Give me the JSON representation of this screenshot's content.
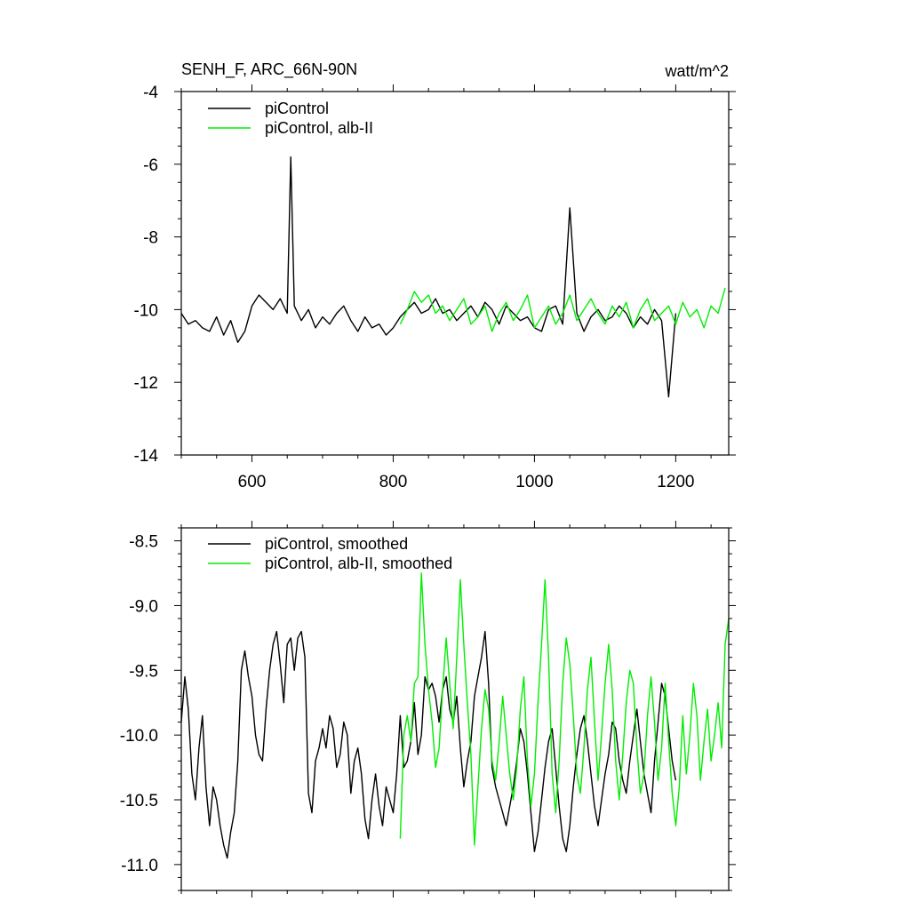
{
  "chart_data": [
    {
      "type": "line",
      "title": "SENH_F, ARC_66N-90N",
      "units": "watt/m^2",
      "xlim": [
        500,
        1275
      ],
      "ylim": [
        -14,
        -4
      ],
      "xticks": [
        600,
        800,
        1000,
        1200
      ],
      "yticks": [
        -4,
        -6,
        -8,
        -10,
        -12,
        -14
      ],
      "xtick_labels": [
        "600",
        "800",
        "1000",
        "1200"
      ],
      "ytick_labels": [
        "-4",
        "-6",
        "-8",
        "-10",
        "-12",
        "-14"
      ],
      "legend_position": "top-left",
      "colors": {
        "piControl": "#000000",
        "alb": "#00ee00"
      },
      "series": [
        {
          "name": "piControl",
          "color": "#000000",
          "x": [
            500,
            510,
            520,
            530,
            540,
            550,
            560,
            570,
            580,
            590,
            600,
            610,
            620,
            630,
            640,
            650,
            655,
            660,
            670,
            680,
            690,
            700,
            710,
            720,
            730,
            740,
            750,
            760,
            770,
            780,
            790,
            800,
            810,
            820,
            830,
            840,
            850,
            860,
            870,
            880,
            890,
            900,
            910,
            920,
            930,
            940,
            950,
            960,
            970,
            980,
            990,
            1000,
            1010,
            1020,
            1030,
            1040,
            1050,
            1060,
            1070,
            1080,
            1090,
            1100,
            1110,
            1120,
            1130,
            1140,
            1150,
            1160,
            1170,
            1180,
            1190,
            1200
          ],
          "y": [
            -10.1,
            -10.4,
            -10.3,
            -10.5,
            -10.6,
            -10.2,
            -10.7,
            -10.3,
            -10.9,
            -10.6,
            -9.9,
            -9.6,
            -9.8,
            -10.0,
            -9.7,
            -10.1,
            -5.8,
            -9.9,
            -10.3,
            -10.0,
            -10.5,
            -10.2,
            -10.4,
            -10.1,
            -9.9,
            -10.3,
            -10.6,
            -10.2,
            -10.5,
            -10.4,
            -10.7,
            -10.5,
            -10.2,
            -10.0,
            -9.8,
            -10.1,
            -10.0,
            -9.7,
            -10.1,
            -10.0,
            -10.3,
            -10.1,
            -9.9,
            -10.2,
            -9.8,
            -10.0,
            -10.4,
            -9.9,
            -10.1,
            -10.3,
            -10.2,
            -10.5,
            -10.6,
            -10.0,
            -9.9,
            -10.4,
            -7.2,
            -10.1,
            -10.6,
            -10.2,
            -10.0,
            -10.3,
            -10.2,
            -9.9,
            -10.1,
            -10.5,
            -10.2,
            -10.4,
            -10.0,
            -10.3,
            -12.4,
            -10.1
          ]
        },
        {
          "name": "piControl, alb-II",
          "color": "#00ee00",
          "x": [
            810,
            820,
            830,
            840,
            850,
            860,
            870,
            880,
            890,
            900,
            910,
            920,
            930,
            940,
            950,
            960,
            970,
            980,
            990,
            1000,
            1010,
            1020,
            1030,
            1040,
            1050,
            1060,
            1070,
            1080,
            1090,
            1100,
            1110,
            1120,
            1130,
            1140,
            1150,
            1160,
            1170,
            1180,
            1190,
            1200,
            1210,
            1220,
            1230,
            1240,
            1250,
            1260,
            1270
          ],
          "y": [
            -10.4,
            -10.0,
            -9.5,
            -9.8,
            -9.6,
            -10.1,
            -9.9,
            -10.3,
            -10.0,
            -9.7,
            -10.4,
            -10.2,
            -9.9,
            -10.6,
            -10.1,
            -9.8,
            -10.3,
            -10.0,
            -9.6,
            -10.5,
            -10.2,
            -9.9,
            -10.4,
            -10.1,
            -9.6,
            -10.3,
            -10.0,
            -9.7,
            -10.1,
            -10.4,
            -9.9,
            -10.2,
            -9.8,
            -10.5,
            -10.0,
            -9.7,
            -10.3,
            -10.1,
            -9.9,
            -10.4,
            -9.8,
            -10.2,
            -10.0,
            -10.5,
            -9.9,
            -10.1,
            -9.4
          ]
        }
      ]
    },
    {
      "type": "line",
      "xlim": [
        500,
        1275
      ],
      "ylim": [
        -11.2,
        -8.4
      ],
      "xticks": [
        600,
        800,
        1000,
        1200
      ],
      "yticks": [
        -8.5,
        -9.0,
        -9.5,
        -10.0,
        -10.5,
        -11.0
      ],
      "ytick_labels": [
        "-8.5",
        "-9.0",
        "-9.5",
        "-10.0",
        "-10.5",
        "-11.0"
      ],
      "legend_position": "top-left",
      "series": [
        {
          "name": "piControl, smoothed",
          "color": "#000000",
          "x": [
            500,
            505,
            510,
            515,
            520,
            525,
            530,
            535,
            540,
            545,
            550,
            555,
            560,
            565,
            570,
            575,
            580,
            585,
            590,
            595,
            600,
            605,
            610,
            615,
            620,
            625,
            630,
            635,
            640,
            645,
            650,
            655,
            660,
            665,
            670,
            675,
            680,
            685,
            690,
            695,
            700,
            705,
            710,
            715,
            720,
            725,
            730,
            735,
            740,
            745,
            750,
            755,
            760,
            765,
            770,
            775,
            780,
            785,
            790,
            795,
            800,
            805,
            810,
            815,
            820,
            825,
            830,
            835,
            840,
            845,
            850,
            855,
            860,
            865,
            870,
            875,
            880,
            885,
            890,
            895,
            900,
            905,
            910,
            915,
            920,
            925,
            930,
            935,
            940,
            945,
            950,
            955,
            960,
            965,
            970,
            975,
            980,
            985,
            990,
            995,
            1000,
            1005,
            1010,
            1015,
            1020,
            1025,
            1030,
            1035,
            1040,
            1045,
            1050,
            1055,
            1060,
            1065,
            1070,
            1075,
            1080,
            1085,
            1090,
            1095,
            1100,
            1105,
            1110,
            1115,
            1120,
            1125,
            1130,
            1135,
            1140,
            1145,
            1150,
            1155,
            1160,
            1165,
            1170,
            1175,
            1180,
            1185,
            1190,
            1195,
            1200
          ],
          "y": [
            -9.9,
            -9.55,
            -9.8,
            -10.3,
            -10.5,
            -10.1,
            -9.85,
            -10.4,
            -10.7,
            -10.4,
            -10.5,
            -10.7,
            -10.85,
            -10.95,
            -10.75,
            -10.6,
            -10.2,
            -9.5,
            -9.35,
            -9.55,
            -9.7,
            -10.0,
            -10.15,
            -10.2,
            -9.8,
            -9.5,
            -9.3,
            -9.2,
            -9.45,
            -9.75,
            -9.3,
            -9.25,
            -9.5,
            -9.25,
            -9.2,
            -9.4,
            -10.45,
            -10.6,
            -10.2,
            -10.1,
            -9.95,
            -10.1,
            -9.85,
            -9.95,
            -10.25,
            -10.15,
            -9.9,
            -10.0,
            -10.45,
            -10.2,
            -10.1,
            -10.3,
            -10.65,
            -10.8,
            -10.5,
            -10.3,
            -10.55,
            -10.7,
            -10.4,
            -10.5,
            -10.6,
            -10.3,
            -9.85,
            -10.25,
            -10.2,
            -10.05,
            -9.75,
            -10.15,
            -10.0,
            -9.55,
            -9.65,
            -9.6,
            -9.7,
            -9.9,
            -9.65,
            -9.55,
            -9.8,
            -9.9,
            -9.7,
            -10.1,
            -10.4,
            -10.2,
            -10.05,
            -9.7,
            -9.55,
            -9.4,
            -9.2,
            -9.6,
            -10.25,
            -10.4,
            -10.5,
            -10.6,
            -10.7,
            -10.55,
            -10.4,
            -10.2,
            -9.95,
            -10.05,
            -10.3,
            -10.6,
            -10.9,
            -10.75,
            -10.5,
            -10.25,
            -10.05,
            -9.95,
            -10.25,
            -10.55,
            -10.8,
            -10.9,
            -10.7,
            -10.4,
            -10.15,
            -9.95,
            -9.85,
            -10.05,
            -10.3,
            -10.55,
            -10.7,
            -10.5,
            -10.3,
            -10.15,
            -9.9,
            -9.95,
            -10.2,
            -10.35,
            -10.45,
            -10.2,
            -10.0,
            -9.8,
            -10.05,
            -10.3,
            -10.45,
            -10.6,
            -10.2,
            -9.9,
            -9.6,
            -9.7,
            -9.95,
            -10.2,
            -10.35
          ]
        },
        {
          "name": "piControl, alb-II, smoothed",
          "color": "#00ee00",
          "x": [
            810,
            815,
            820,
            825,
            830,
            835,
            840,
            845,
            850,
            855,
            860,
            865,
            870,
            875,
            880,
            885,
            890,
            895,
            900,
            905,
            910,
            915,
            920,
            925,
            930,
            935,
            940,
            945,
            950,
            955,
            960,
            965,
            970,
            975,
            980,
            985,
            990,
            995,
            1000,
            1005,
            1010,
            1015,
            1020,
            1025,
            1030,
            1035,
            1040,
            1045,
            1050,
            1055,
            1060,
            1065,
            1070,
            1075,
            1080,
            1085,
            1090,
            1095,
            1100,
            1105,
            1110,
            1115,
            1120,
            1125,
            1130,
            1135,
            1140,
            1145,
            1150,
            1155,
            1160,
            1165,
            1170,
            1175,
            1180,
            1185,
            1190,
            1195,
            1200,
            1205,
            1210,
            1215,
            1220,
            1225,
            1230,
            1235,
            1240,
            1245,
            1250,
            1255,
            1260,
            1265,
            1270,
            1275
          ],
          "y": [
            -10.8,
            -10.0,
            -9.85,
            -10.05,
            -9.6,
            -9.55,
            -8.75,
            -9.3,
            -9.65,
            -9.9,
            -10.25,
            -10.1,
            -9.65,
            -9.25,
            -9.6,
            -9.95,
            -9.4,
            -8.8,
            -9.3,
            -9.75,
            -10.15,
            -10.85,
            -10.4,
            -9.95,
            -9.65,
            -9.8,
            -10.2,
            -10.35,
            -10.05,
            -9.7,
            -10.0,
            -10.3,
            -10.5,
            -10.25,
            -9.8,
            -9.55,
            -10.2,
            -10.55,
            -10.3,
            -9.75,
            -9.3,
            -8.8,
            -9.4,
            -10.3,
            -10.6,
            -10.2,
            -9.6,
            -9.25,
            -9.45,
            -9.85,
            -10.3,
            -10.45,
            -10.1,
            -9.65,
            -9.4,
            -9.9,
            -10.35,
            -10.0,
            -9.6,
            -9.3,
            -9.65,
            -10.2,
            -10.5,
            -10.15,
            -9.75,
            -9.5,
            -9.6,
            -10.1,
            -10.45,
            -10.3,
            -9.85,
            -9.55,
            -9.9,
            -10.35,
            -10.1,
            -9.6,
            -10.05,
            -10.45,
            -10.7,
            -10.4,
            -9.85,
            -10.3,
            -10.0,
            -9.6,
            -9.85,
            -10.35,
            -10.05,
            -9.8,
            -10.2,
            -10.0,
            -9.75,
            -10.1,
            -9.3,
            -9.1
          ]
        }
      ]
    }
  ]
}
